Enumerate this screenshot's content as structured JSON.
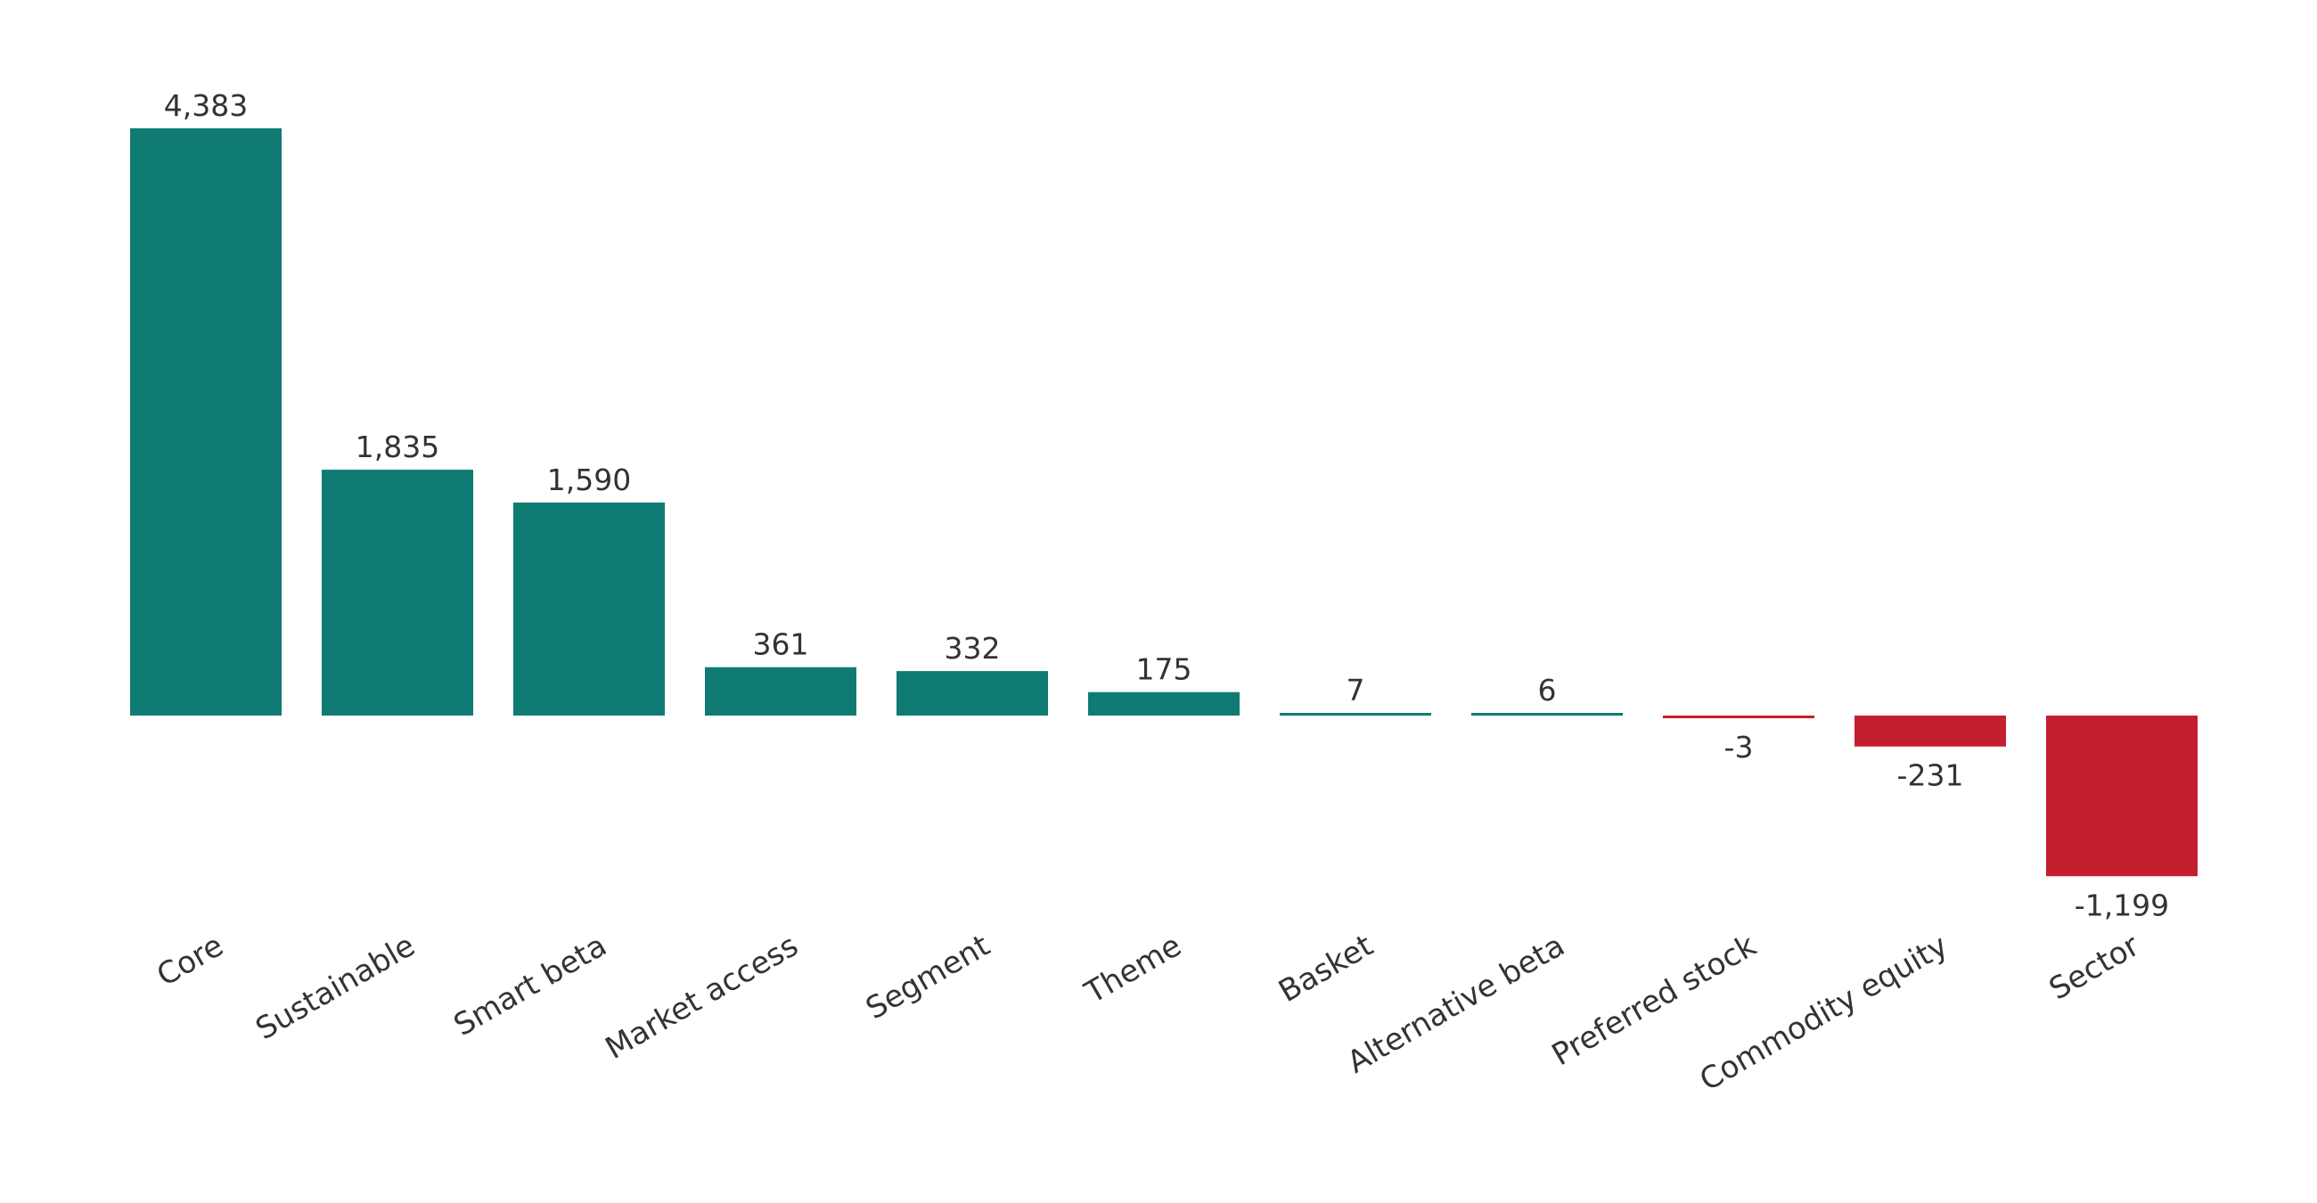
{
  "chart_data": {
    "type": "bar",
    "categories": [
      "Core",
      "Sustainable",
      "Smart beta",
      "Market access",
      "Segment",
      "Theme",
      "Basket",
      "Alternative beta",
      "Preferred stock",
      "Commodity equity",
      "Sector"
    ],
    "values": [
      4383,
      1835,
      1590,
      361,
      332,
      175,
      7,
      6,
      -3,
      -231,
      -1199
    ],
    "value_labels": [
      "4,383",
      "1,835",
      "1,590",
      "361",
      "332",
      "175",
      "7",
      "6",
      "-3",
      "-231",
      "-1,199"
    ],
    "title": "",
    "xlabel": "",
    "ylabel": "",
    "ylim": [
      -1199,
      4383
    ],
    "grid": false,
    "legend": "none",
    "colors": {
      "positive": "#0f7b73",
      "negative": "#c41f2f",
      "text": "#333333"
    }
  }
}
